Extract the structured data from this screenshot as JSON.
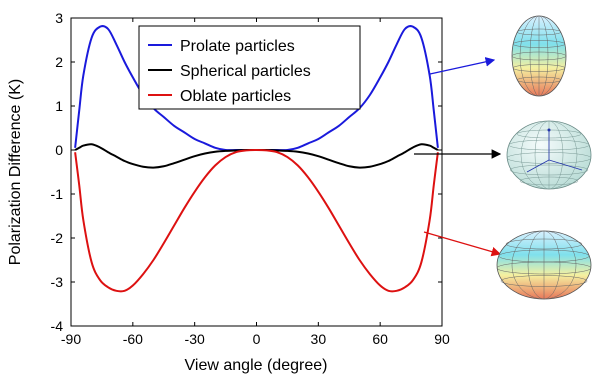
{
  "chart_data": {
    "type": "line",
    "xlabel": "View angle (degree)",
    "ylabel": "Polarization Difference (K)",
    "xlim": [
      -90,
      90
    ],
    "ylim": [
      -4,
      3
    ],
    "xticks": [
      -90,
      -60,
      -30,
      0,
      30,
      60,
      90
    ],
    "xtick_labels": [
      "-90",
      "-60",
      "-30",
      "0",
      "30",
      "60",
      "90"
    ],
    "yticks": [
      3,
      2,
      1,
      0,
      -1,
      -2,
      -3,
      -4
    ],
    "ytick_labels": [
      "3",
      "2",
      "1",
      "0",
      "-1",
      "-2",
      "-3",
      "-4"
    ],
    "grid": false,
    "legend_position": "top-center",
    "x": [
      -88,
      -86,
      -84,
      -80,
      -76,
      -72,
      -68,
      -64,
      -60,
      -55,
      -50,
      -45,
      -40,
      -35,
      -30,
      -25,
      -20,
      -15,
      -10,
      -5,
      0,
      5,
      10,
      15,
      20,
      25,
      30,
      35,
      40,
      45,
      50,
      55,
      60,
      64,
      68,
      72,
      76,
      80,
      84,
      86,
      88
    ],
    "series": [
      {
        "name": "Prolate particles",
        "color": "#1a1adc",
        "values": [
          0.05,
          0.9,
          1.7,
          2.55,
          2.8,
          2.75,
          2.4,
          2.0,
          1.65,
          1.25,
          0.95,
          0.75,
          0.55,
          0.4,
          0.25,
          0.15,
          0.05,
          0.0,
          0.0,
          0.0,
          0.0,
          0.0,
          0.0,
          0.0,
          0.05,
          0.15,
          0.25,
          0.4,
          0.55,
          0.75,
          0.95,
          1.25,
          1.65,
          2.0,
          2.4,
          2.75,
          2.8,
          2.55,
          1.7,
          0.9,
          0.05
        ]
      },
      {
        "name": "Spherical particles",
        "color": "#000000",
        "values": [
          0.0,
          0.05,
          0.1,
          0.13,
          0.06,
          -0.05,
          -0.15,
          -0.25,
          -0.32,
          -0.38,
          -0.4,
          -0.37,
          -0.3,
          -0.22,
          -0.14,
          -0.08,
          -0.04,
          -0.02,
          -0.01,
          0.0,
          0.0,
          0.0,
          -0.01,
          -0.02,
          -0.04,
          -0.08,
          -0.14,
          -0.22,
          -0.3,
          -0.37,
          -0.4,
          -0.38,
          -0.32,
          -0.25,
          -0.15,
          -0.05,
          0.06,
          0.13,
          0.1,
          0.05,
          0.0
        ]
      },
      {
        "name": "Oblate particles",
        "color": "#dd1111",
        "values": [
          -0.05,
          -0.8,
          -1.6,
          -2.55,
          -2.95,
          -3.12,
          -3.2,
          -3.2,
          -3.08,
          -2.82,
          -2.5,
          -2.12,
          -1.72,
          -1.32,
          -0.95,
          -0.62,
          -0.35,
          -0.16,
          -0.05,
          -0.01,
          0.0,
          -0.01,
          -0.05,
          -0.16,
          -0.35,
          -0.62,
          -0.95,
          -1.32,
          -1.72,
          -2.12,
          -2.5,
          -2.82,
          -3.08,
          -3.2,
          -3.2,
          -3.12,
          -2.95,
          -2.55,
          -1.6,
          -0.8,
          -0.05
        ]
      }
    ]
  },
  "illustrations": [
    {
      "icon": "prolate-spheroid-icon",
      "arrow_color": "#1a1adc"
    },
    {
      "icon": "sphere-icon",
      "arrow_color": "#000000"
    },
    {
      "icon": "oblate-spheroid-icon",
      "arrow_color": "#dd1111"
    }
  ]
}
